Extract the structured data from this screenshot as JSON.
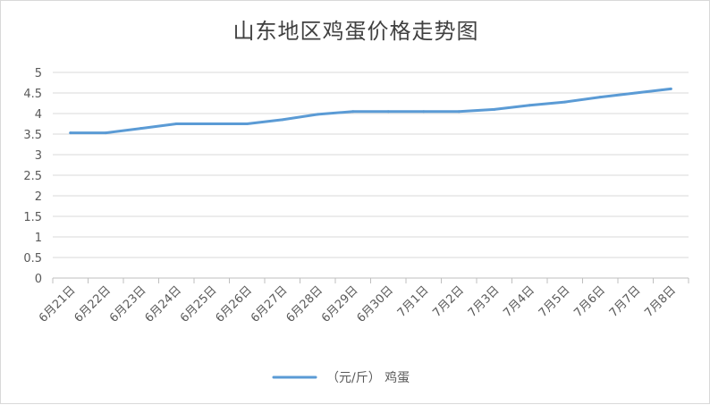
{
  "chart_data": {
    "type": "line",
    "title": "山东地区鸡蛋价格走势图",
    "categories": [
      "6月21日",
      "6月22日",
      "6月23日",
      "6月24日",
      "6月25日",
      "6月26日",
      "6月27日",
      "6月28日",
      "6月29日",
      "6月30日",
      "7月1日",
      "7月2日",
      "7月3日",
      "7月4日",
      "7月5日",
      "7月6日",
      "7月7日",
      "7月8日"
    ],
    "series": [
      {
        "name": "（元/斤） 鸡蛋",
        "values": [
          3.53,
          3.53,
          3.64,
          3.75,
          3.75,
          3.75,
          3.85,
          3.98,
          4.05,
          4.05,
          4.05,
          4.05,
          4.1,
          4.2,
          4.28,
          4.4,
          4.5,
          4.6
        ],
        "color": "#5b9bd5"
      }
    ],
    "y_ticks": [
      "0",
      "0.5",
      "1",
      "1.5",
      "2",
      "2.5",
      "3",
      "3.5",
      "4",
      "4.5",
      "5"
    ],
    "ylim": [
      0,
      5
    ],
    "grid": true,
    "legend_position": "bottom"
  },
  "colors": {
    "gridline": "#d9d9d9",
    "axis": "#bfbfbf",
    "text": "#595959"
  }
}
